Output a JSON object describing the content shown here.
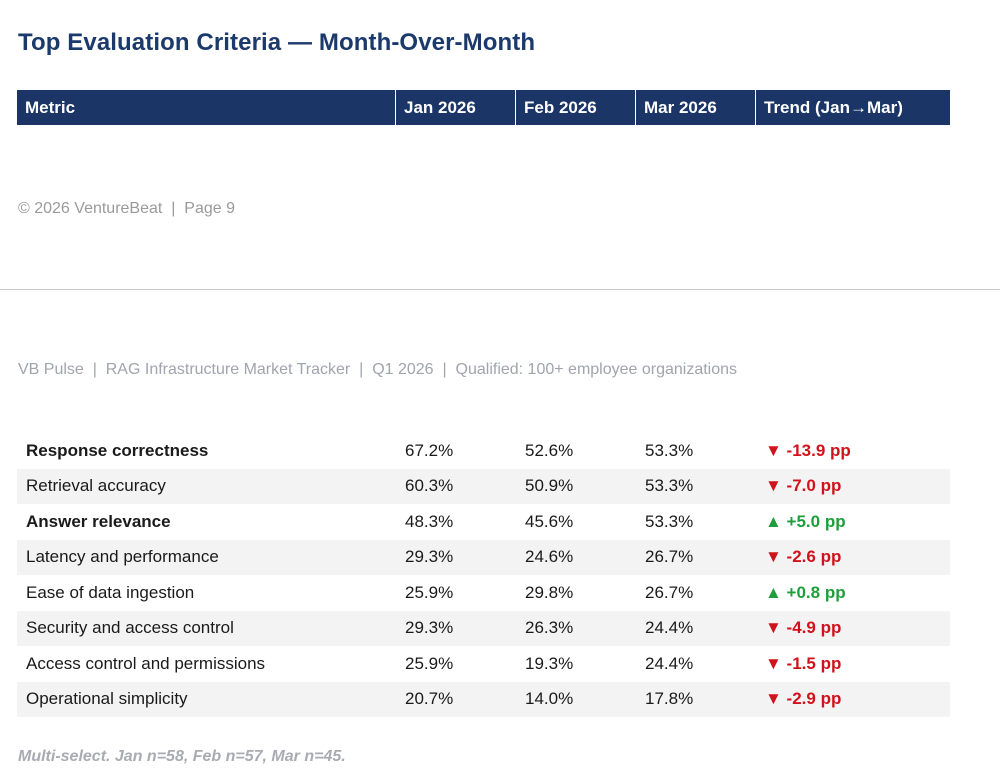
{
  "title": "Top Evaluation Criteria — Month-Over-Month",
  "table": {
    "columns": [
      "Metric",
      "Jan 2026",
      "Feb 2026",
      "Mar 2026",
      "Trend (Jan→Mar)"
    ],
    "rows": [
      {
        "metric": "Response correctness",
        "bold": true,
        "jan": "67.2%",
        "feb": "52.6%",
        "mar": "53.3%",
        "trend": "▼ -13.9 pp",
        "direction": "down"
      },
      {
        "metric": "Retrieval accuracy",
        "bold": false,
        "jan": "60.3%",
        "feb": "50.9%",
        "mar": "53.3%",
        "trend": "▼ -7.0 pp",
        "direction": "down"
      },
      {
        "metric": "Answer relevance",
        "bold": true,
        "jan": "48.3%",
        "feb": "45.6%",
        "mar": "53.3%",
        "trend": "▲ +5.0 pp",
        "direction": "up"
      },
      {
        "metric": "Latency and performance",
        "bold": false,
        "jan": "29.3%",
        "feb": "24.6%",
        "mar": "26.7%",
        "trend": "▼ -2.6 pp",
        "direction": "down"
      },
      {
        "metric": "Ease of data ingestion",
        "bold": false,
        "jan": "25.9%",
        "feb": "29.8%",
        "mar": "26.7%",
        "trend": "▲ +0.8 pp",
        "direction": "up"
      },
      {
        "metric": "Security and access control",
        "bold": false,
        "jan": "29.3%",
        "feb": "26.3%",
        "mar": "24.4%",
        "trend": "▼ -4.9 pp",
        "direction": "down"
      },
      {
        "metric": "Access control and permissions",
        "bold": false,
        "jan": "25.9%",
        "feb": "19.3%",
        "mar": "24.4%",
        "trend": "▼ -1.5 pp",
        "direction": "down"
      },
      {
        "metric": "Operational simplicity",
        "bold": false,
        "jan": "20.7%",
        "feb": "14.0%",
        "mar": "17.8%",
        "trend": "▼ -2.9 pp",
        "direction": "down"
      }
    ]
  },
  "footer": "© 2026 VentureBeat  |  Page 9",
  "running_head": "VB Pulse  |  RAG Infrastructure Market Tracker  |  Q1 2026  |  Qualified: 100+ employee organizations",
  "note": "Multi-select. Jan n=58, Feb n=57, Mar n=45.",
  "colors": {
    "header_bg": "#1a3566",
    "title": "#1b3a6b",
    "trend_down": "#d0121b",
    "trend_up": "#1e9e3a",
    "stripe": "#f3f3f4"
  }
}
